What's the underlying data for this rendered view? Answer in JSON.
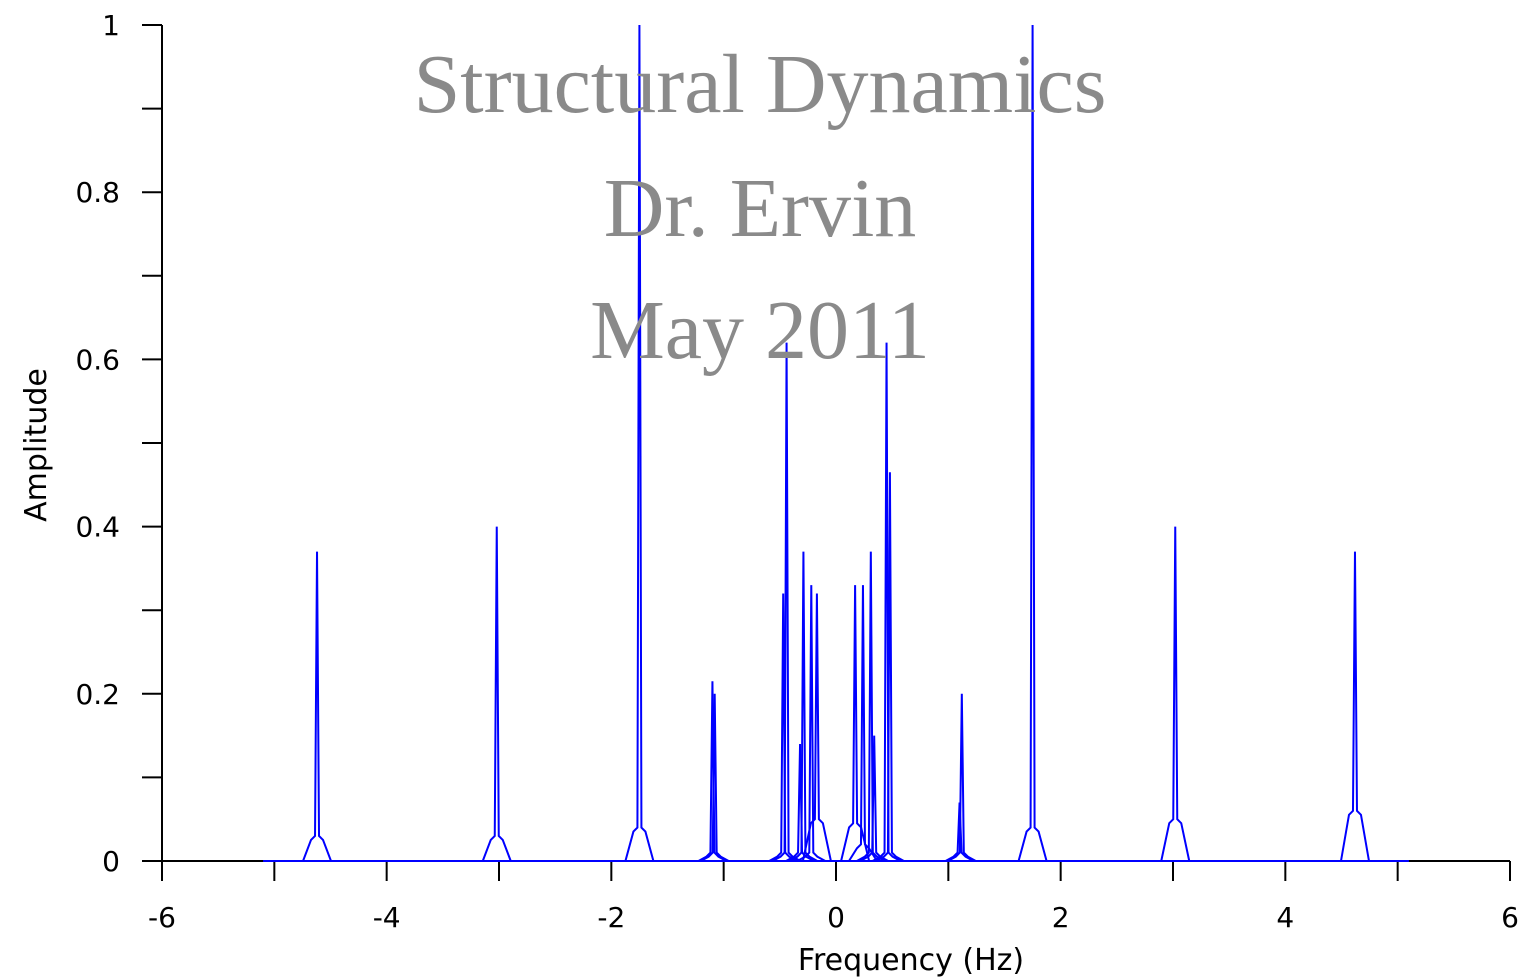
{
  "overlay": {
    "line1": "Structural Dynamics",
    "line2": "Dr. Ervin",
    "line3": "May 2011"
  },
  "chart_data": {
    "type": "line",
    "title": "",
    "xlabel": "Frequency (Hz)",
    "ylabel": "Amplitude",
    "xlim": [
      -6,
      6
    ],
    "ylim": [
      0,
      1
    ],
    "x_ticks": [
      -6,
      -4,
      -2,
      0,
      2,
      4,
      6
    ],
    "x_tick_labels": [
      "-6",
      "-4",
      "-2",
      "0",
      "2",
      "4",
      "6"
    ],
    "y_ticks": [
      0,
      0.2,
      0.4,
      0.6,
      0.8,
      1
    ],
    "y_tick_labels": [
      "0",
      "0.2",
      "0.4",
      "0.6",
      "0.8",
      "1"
    ],
    "grid": false,
    "line_color": "#0000ff",
    "x_range_data": [
      -5.1,
      5.1
    ],
    "peaks": [
      {
        "x": -4.62,
        "y": 0.37,
        "side": 0.03
      },
      {
        "x": -3.02,
        "y": 0.4,
        "side": 0.03
      },
      {
        "x": -1.75,
        "y": 1.0,
        "side": 0.04
      },
      {
        "x": -1.1,
        "y": 0.215,
        "side": 0.01
      },
      {
        "x": -1.08,
        "y": 0.2,
        "side": 0.01
      },
      {
        "x": -0.47,
        "y": 0.32,
        "side": 0.01
      },
      {
        "x": -0.44,
        "y": 0.62,
        "side": 0.01
      },
      {
        "x": -0.32,
        "y": 0.14,
        "side": 0.01
      },
      {
        "x": -0.29,
        "y": 0.37,
        "side": 0.01
      },
      {
        "x": -0.22,
        "y": 0.33,
        "side": 0.01
      },
      {
        "x": -0.17,
        "y": 0.32,
        "side": 0.05
      },
      {
        "x": 0.17,
        "y": 0.33,
        "side": 0.045
      },
      {
        "x": 0.24,
        "y": 0.33,
        "side": 0.02
      },
      {
        "x": 0.31,
        "y": 0.37,
        "side": 0.01
      },
      {
        "x": 0.34,
        "y": 0.15,
        "side": 0.01
      },
      {
        "x": 0.45,
        "y": 0.62,
        "side": 0.01
      },
      {
        "x": 0.48,
        "y": 0.465,
        "side": 0.01
      },
      {
        "x": 1.1,
        "y": 0.07,
        "side": 0.01
      },
      {
        "x": 1.12,
        "y": 0.2,
        "side": 0.01
      },
      {
        "x": 1.75,
        "y": 1.0,
        "side": 0.04
      },
      {
        "x": 3.02,
        "y": 0.4,
        "side": 0.05
      },
      {
        "x": 4.62,
        "y": 0.37,
        "side": 0.06
      }
    ]
  }
}
